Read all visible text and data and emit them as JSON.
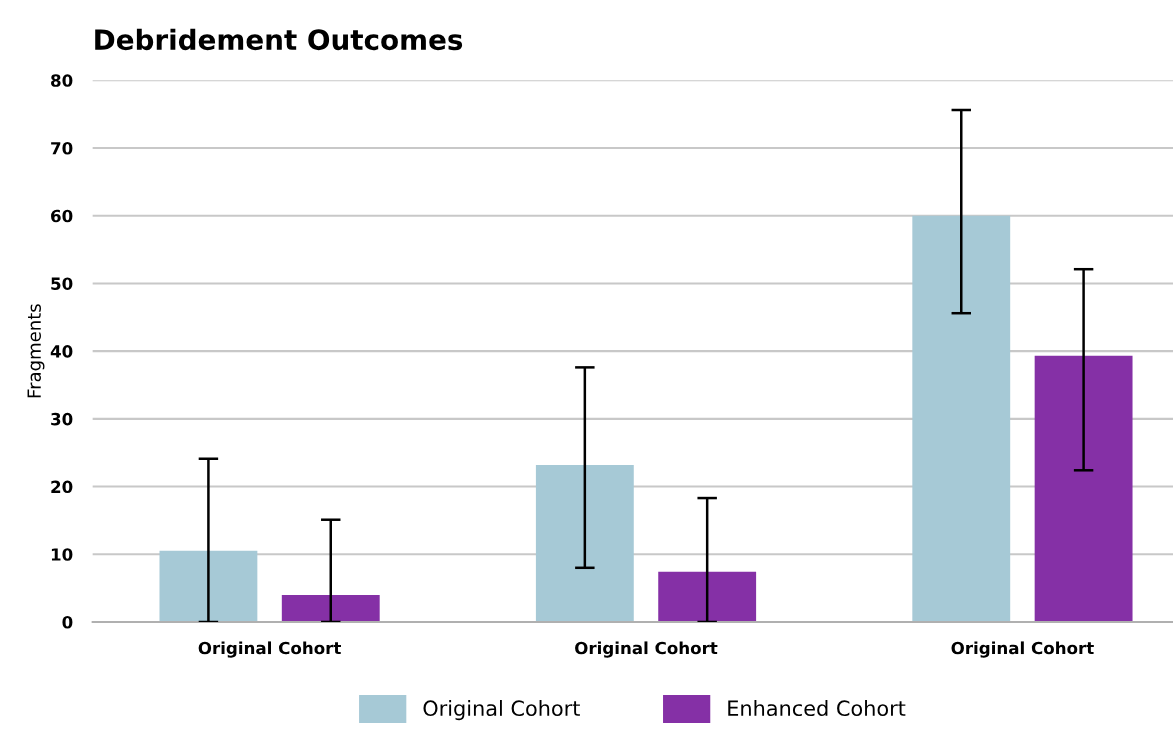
{
  "chart_data": {
    "type": "bar",
    "title": "Debridement Outcomes",
    "ylabel": "Fragments",
    "categories": [
      "Original Cohort",
      "Original Cohort",
      "Original Cohort"
    ],
    "series": [
      {
        "name": "Original Cohort",
        "color": "#a6c9d6",
        "values": [
          10.5,
          23.2,
          60
        ],
        "errors": [
          [
            0,
            24.1
          ],
          [
            8,
            37.6
          ],
          [
            45.6,
            75.6
          ]
        ]
      },
      {
        "name": "Enhanced Cohort",
        "color": "#8530a6",
        "values": [
          4,
          7.4,
          39.3
        ],
        "errors": [
          [
            0,
            15.1
          ],
          [
            0,
            18.3
          ],
          [
            22.4,
            52.1
          ]
        ]
      }
    ],
    "ylim": [
      0,
      80
    ],
    "yticks": [
      0,
      10,
      20,
      30,
      40,
      50,
      60,
      70,
      80
    ],
    "grid": "y",
    "legend": "bottom"
  }
}
